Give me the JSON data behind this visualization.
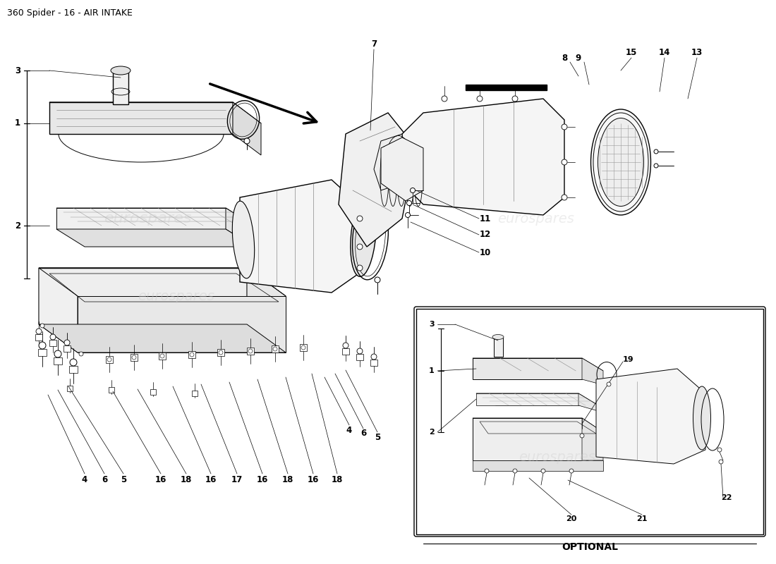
{
  "title": "360 Spider - 16 - AIR INTAKE",
  "bg": "#ffffff",
  "lc": "#000000",
  "wm": "eurospares",
  "wm_color": "#cccccc",
  "opt_label": "OPTIONAL",
  "lfs": 8.5,
  "tfs": 9.0
}
